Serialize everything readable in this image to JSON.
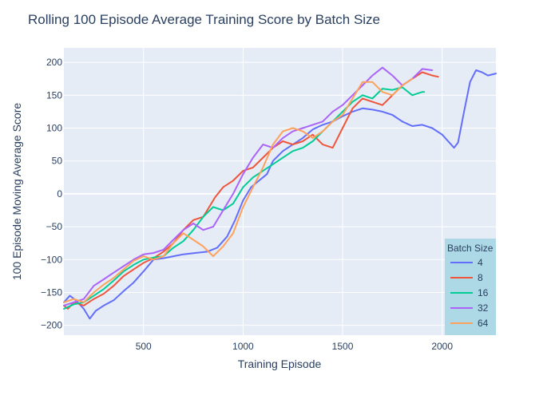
{
  "chart_data": {
    "type": "line",
    "title": "Rolling 100 Episode Average Training Score by Batch Size",
    "xlabel": "Training Episode",
    "ylabel": "100 Episode Moving Average Score",
    "xlim": [
      100,
      2270
    ],
    "ylim": [
      -215,
      222
    ],
    "xticks": [
      500,
      1000,
      1500,
      2000
    ],
    "yticks": [
      -200,
      -150,
      -100,
      -50,
      0,
      50,
      100,
      150,
      200
    ],
    "grid": true,
    "legend": {
      "title": "Batch Size",
      "placement": "bottom-right"
    },
    "series": [
      {
        "name": "4",
        "color": "#636efa",
        "points": [
          [
            100,
            -165
          ],
          [
            130,
            -155
          ],
          [
            160,
            -162
          ],
          [
            200,
            -175
          ],
          [
            230,
            -190
          ],
          [
            260,
            -178
          ],
          [
            300,
            -170
          ],
          [
            350,
            -162
          ],
          [
            400,
            -148
          ],
          [
            450,
            -135
          ],
          [
            500,
            -118
          ],
          [
            550,
            -100
          ],
          [
            600,
            -98
          ],
          [
            650,
            -95
          ],
          [
            700,
            -92
          ],
          [
            760,
            -90
          ],
          [
            820,
            -88
          ],
          [
            870,
            -82
          ],
          [
            920,
            -65
          ],
          [
            960,
            -40
          ],
          [
            1000,
            -10
          ],
          [
            1040,
            10
          ],
          [
            1080,
            20
          ],
          [
            1120,
            30
          ],
          [
            1150,
            50
          ],
          [
            1200,
            65
          ],
          [
            1250,
            75
          ],
          [
            1300,
            85
          ],
          [
            1350,
            98
          ],
          [
            1400,
            105
          ],
          [
            1450,
            110
          ],
          [
            1500,
            118
          ],
          [
            1550,
            125
          ],
          [
            1600,
            130
          ],
          [
            1650,
            128
          ],
          [
            1700,
            125
          ],
          [
            1750,
            120
          ],
          [
            1800,
            110
          ],
          [
            1850,
            103
          ],
          [
            1900,
            105
          ],
          [
            1950,
            100
          ],
          [
            2000,
            90
          ],
          [
            2030,
            80
          ],
          [
            2060,
            70
          ],
          [
            2080,
            78
          ],
          [
            2110,
            125
          ],
          [
            2140,
            170
          ],
          [
            2170,
            188
          ],
          [
            2200,
            185
          ],
          [
            2230,
            180
          ],
          [
            2270,
            183
          ]
        ]
      },
      {
        "name": "8",
        "color": "#ef553b",
        "points": [
          [
            100,
            -170
          ],
          [
            120,
            -175
          ],
          [
            150,
            -165
          ],
          [
            200,
            -170
          ],
          [
            250,
            -160
          ],
          [
            300,
            -152
          ],
          [
            350,
            -140
          ],
          [
            400,
            -125
          ],
          [
            450,
            -115
          ],
          [
            500,
            -105
          ],
          [
            550,
            -98
          ],
          [
            600,
            -88
          ],
          [
            650,
            -75
          ],
          [
            700,
            -55
          ],
          [
            750,
            -40
          ],
          [
            800,
            -35
          ],
          [
            830,
            -20
          ],
          [
            860,
            -5
          ],
          [
            900,
            10
          ],
          [
            950,
            20
          ],
          [
            1000,
            35
          ],
          [
            1050,
            40
          ],
          [
            1100,
            55
          ],
          [
            1150,
            70
          ],
          [
            1200,
            80
          ],
          [
            1250,
            75
          ],
          [
            1300,
            80
          ],
          [
            1350,
            90
          ],
          [
            1400,
            75
          ],
          [
            1450,
            70
          ],
          [
            1500,
            100
          ],
          [
            1550,
            130
          ],
          [
            1600,
            145
          ],
          [
            1650,
            140
          ],
          [
            1700,
            135
          ],
          [
            1750,
            150
          ],
          [
            1800,
            165
          ],
          [
            1850,
            175
          ],
          [
            1900,
            185
          ],
          [
            1950,
            180
          ],
          [
            1980,
            178
          ]
        ]
      },
      {
        "name": "16",
        "color": "#00cc96",
        "points": [
          [
            100,
            -175
          ],
          [
            150,
            -168
          ],
          [
            200,
            -165
          ],
          [
            250,
            -155
          ],
          [
            300,
            -145
          ],
          [
            350,
            -132
          ],
          [
            400,
            -118
          ],
          [
            450,
            -108
          ],
          [
            500,
            -100
          ],
          [
            550,
            -97
          ],
          [
            600,
            -95
          ],
          [
            650,
            -82
          ],
          [
            700,
            -72
          ],
          [
            750,
            -55
          ],
          [
            800,
            -35
          ],
          [
            850,
            -20
          ],
          [
            900,
            -25
          ],
          [
            950,
            -15
          ],
          [
            1000,
            10
          ],
          [
            1050,
            25
          ],
          [
            1100,
            35
          ],
          [
            1150,
            45
          ],
          [
            1200,
            55
          ],
          [
            1250,
            65
          ],
          [
            1300,
            70
          ],
          [
            1350,
            80
          ],
          [
            1400,
            95
          ],
          [
            1450,
            110
          ],
          [
            1500,
            125
          ],
          [
            1550,
            140
          ],
          [
            1600,
            150
          ],
          [
            1650,
            145
          ],
          [
            1700,
            160
          ],
          [
            1750,
            158
          ],
          [
            1800,
            162
          ],
          [
            1850,
            150
          ],
          [
            1900,
            155
          ],
          [
            1910,
            155
          ]
        ]
      },
      {
        "name": "32",
        "color": "#ab63fa",
        "points": [
          [
            100,
            -170
          ],
          [
            150,
            -165
          ],
          [
            200,
            -160
          ],
          [
            250,
            -140
          ],
          [
            300,
            -130
          ],
          [
            350,
            -120
          ],
          [
            400,
            -110
          ],
          [
            450,
            -100
          ],
          [
            500,
            -92
          ],
          [
            550,
            -90
          ],
          [
            600,
            -85
          ],
          [
            650,
            -70
          ],
          [
            700,
            -55
          ],
          [
            750,
            -45
          ],
          [
            800,
            -55
          ],
          [
            850,
            -50
          ],
          [
            900,
            -25
          ],
          [
            950,
            0
          ],
          [
            1000,
            30
          ],
          [
            1050,
            55
          ],
          [
            1100,
            75
          ],
          [
            1150,
            70
          ],
          [
            1200,
            85
          ],
          [
            1250,
            95
          ],
          [
            1300,
            100
          ],
          [
            1350,
            105
          ],
          [
            1400,
            110
          ],
          [
            1450,
            125
          ],
          [
            1500,
            135
          ],
          [
            1550,
            150
          ],
          [
            1600,
            165
          ],
          [
            1650,
            180
          ],
          [
            1700,
            192
          ],
          [
            1750,
            180
          ],
          [
            1800,
            165
          ],
          [
            1850,
            175
          ],
          [
            1900,
            190
          ],
          [
            1950,
            188
          ]
        ]
      },
      {
        "name": "64",
        "color": "#ffa15a",
        "points": [
          [
            100,
            -165
          ],
          [
            150,
            -160
          ],
          [
            200,
            -165
          ],
          [
            250,
            -150
          ],
          [
            300,
            -138
          ],
          [
            350,
            -128
          ],
          [
            400,
            -115
          ],
          [
            450,
            -102
          ],
          [
            500,
            -95
          ],
          [
            550,
            -100
          ],
          [
            600,
            -95
          ],
          [
            650,
            -75
          ],
          [
            700,
            -60
          ],
          [
            750,
            -70
          ],
          [
            800,
            -80
          ],
          [
            850,
            -95
          ],
          [
            900,
            -80
          ],
          [
            950,
            -60
          ],
          [
            1000,
            -20
          ],
          [
            1050,
            10
          ],
          [
            1100,
            40
          ],
          [
            1150,
            75
          ],
          [
            1200,
            95
          ],
          [
            1250,
            100
          ],
          [
            1300,
            95
          ],
          [
            1350,
            85
          ],
          [
            1400,
            95
          ],
          [
            1450,
            110
          ],
          [
            1500,
            120
          ],
          [
            1550,
            145
          ],
          [
            1600,
            170
          ],
          [
            1650,
            170
          ],
          [
            1700,
            155
          ],
          [
            1750,
            150
          ],
          [
            1800,
            165
          ],
          [
            1850,
            175
          ]
        ]
      }
    ]
  }
}
